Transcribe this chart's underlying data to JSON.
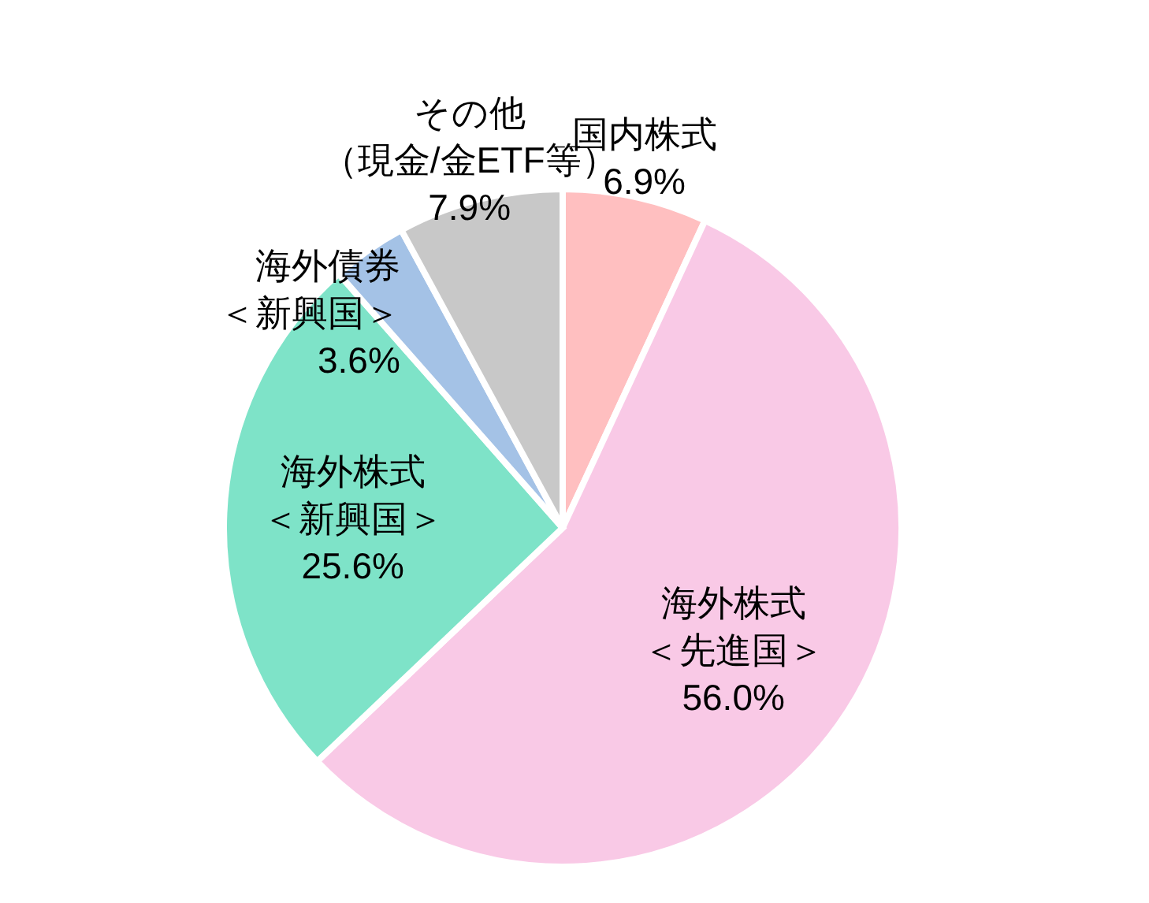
{
  "chart_data": {
    "type": "pie",
    "categories": [
      "国内株式",
      "海外株式＜先進国＞",
      "海外株式＜新興国＞",
      "海外債券＜新興国＞",
      "その他（現金/金ETF等）"
    ],
    "values": [
      6.9,
      56.0,
      25.6,
      3.6,
      7.9
    ],
    "value_labels": [
      "6.9%",
      "56.0%",
      "25.6%",
      "3.6%",
      "7.9%"
    ],
    "colors": [
      "#ffbfc0",
      "#f9c9e6",
      "#7ee3c8",
      "#a4c2e6",
      "#c8c8c8"
    ],
    "legend": false
  }
}
